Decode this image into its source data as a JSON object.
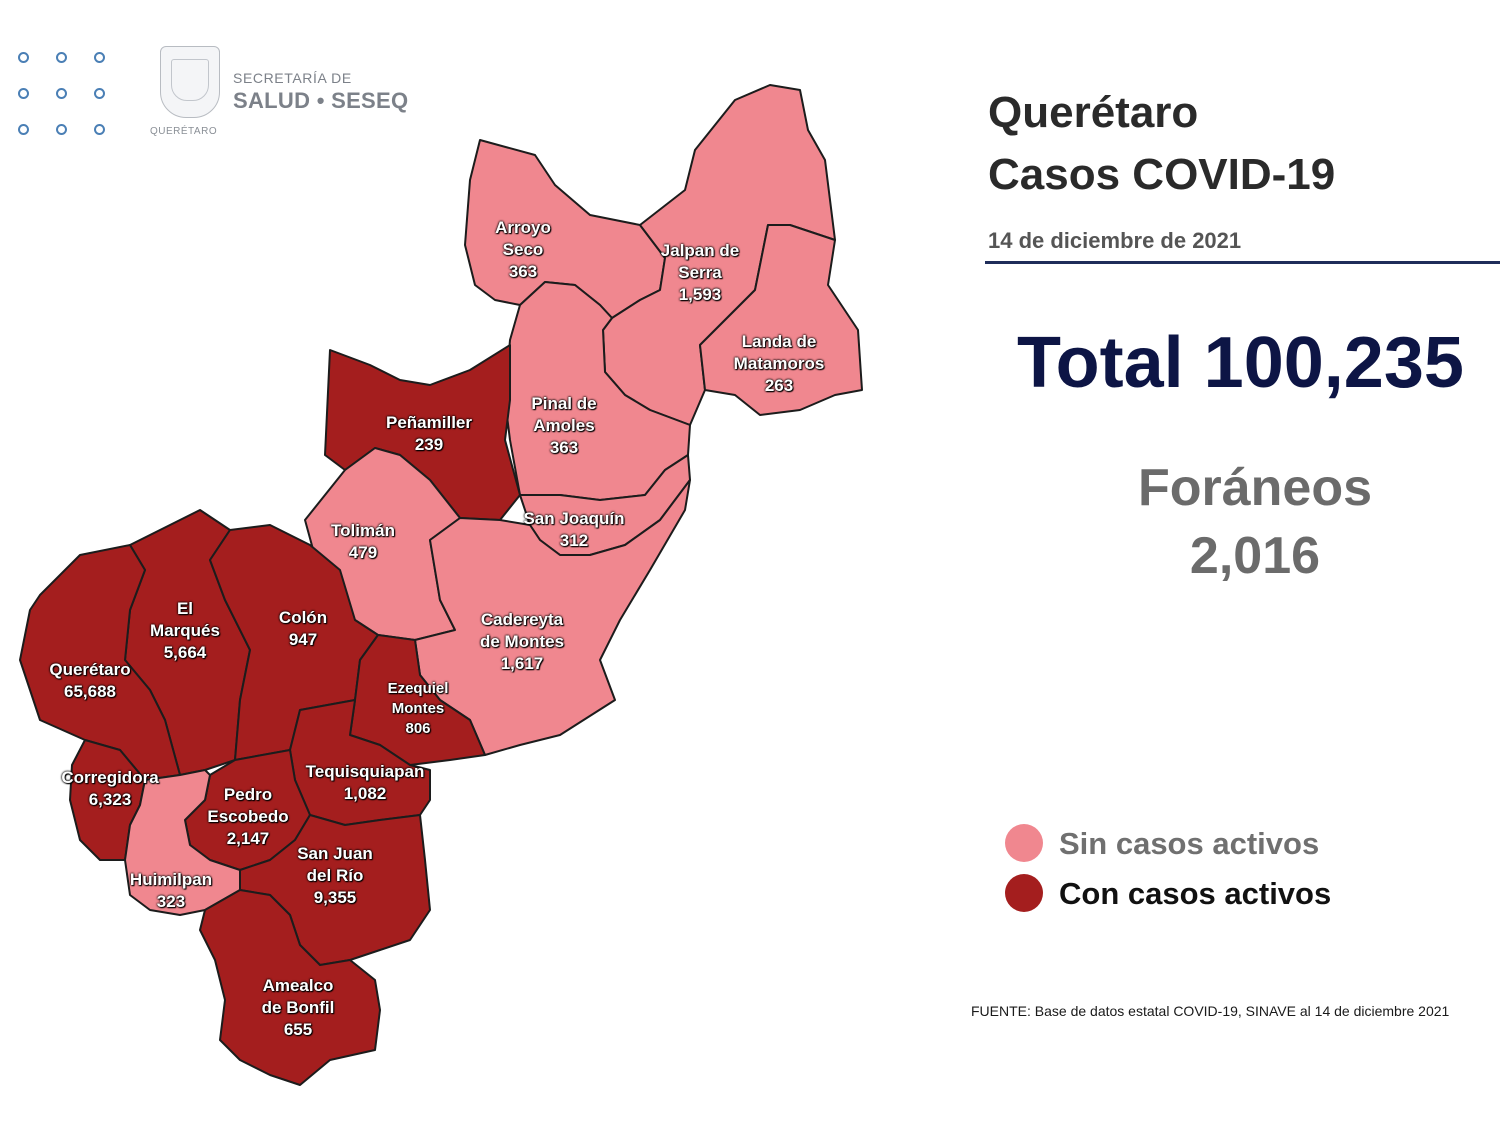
{
  "logo": {
    "line1": "SECRETARÍA DE",
    "line2": "SALUD • SESEQ",
    "caption": "QUERÉTARO"
  },
  "header": {
    "title_line1": "Querétaro",
    "title_line2": "Casos COVID-19",
    "date": "14 de diciembre de 2021"
  },
  "totals": {
    "total_label": "Total 100,235",
    "foraneos_label": "Foráneos",
    "foraneos_value": "2,016"
  },
  "legend": {
    "inactive_label": "Sin casos activos",
    "active_label": "Con casos activos",
    "inactive_color": "#f0878f",
    "active_color": "#a41e1e"
  },
  "municipalities": [
    {
      "name": "Arroyo Seco",
      "cases": "363",
      "status": "inactive"
    },
    {
      "name": "Jalpan de Serra",
      "cases": "1,593",
      "status": "inactive"
    },
    {
      "name": "Landa de Matamoros",
      "cases": "263",
      "status": "inactive"
    },
    {
      "name": "Pinal de Amoles",
      "cases": "363",
      "status": "inactive"
    },
    {
      "name": "Peñamiller",
      "cases": "239",
      "status": "active"
    },
    {
      "name": "San Joaquín",
      "cases": "312",
      "status": "inactive"
    },
    {
      "name": "Tolimán",
      "cases": "479",
      "status": "inactive"
    },
    {
      "name": "Cadereyta de Montes",
      "cases": "1,617",
      "status": "inactive"
    },
    {
      "name": "El Marqués",
      "cases": "5,664",
      "status": "active"
    },
    {
      "name": "Colón",
      "cases": "947",
      "status": "active"
    },
    {
      "name": "Querétaro",
      "cases": "65,688",
      "status": "active"
    },
    {
      "name": "Ezequiel Montes",
      "cases": "806",
      "status": "active"
    },
    {
      "name": "Corregidora",
      "cases": "6,323",
      "status": "active"
    },
    {
      "name": "Tequisquiapan",
      "cases": "1,082",
      "status": "active"
    },
    {
      "name": "Pedro Escobedo",
      "cases": "2,147",
      "status": "active"
    },
    {
      "name": "San Juan del Río",
      "cases": "9,355",
      "status": "active"
    },
    {
      "name": "Huimilpan",
      "cases": "323",
      "status": "inactive"
    },
    {
      "name": "Amealco de Bonfil",
      "cases": "655",
      "status": "active"
    }
  ],
  "source": "FUENTE: Base de datos estatal COVID-19, SINAVE al 14 de diciembre 2021"
}
